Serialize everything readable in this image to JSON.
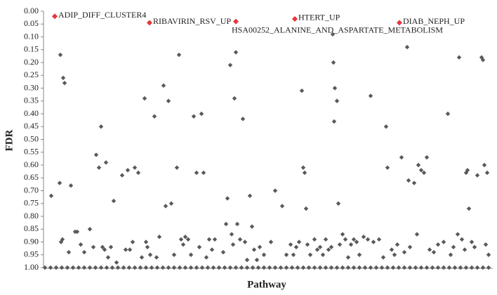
{
  "chart_data": {
    "type": "scatter",
    "x_label": "Pathway",
    "y_label": "FDR",
    "y_inverted": true,
    "xlim": [
      0,
      640
    ],
    "ylim": [
      0,
      1
    ],
    "yticks": [
      {
        "value": 0,
        "label": "0.00"
      },
      {
        "value": 0.05,
        "label": "0.05"
      },
      {
        "value": 0.1,
        "label": "0.10"
      },
      {
        "value": 0.15,
        "label": "0.15"
      },
      {
        "value": 0.2,
        "label": "0.20"
      },
      {
        "value": 0.25,
        "label": "0.25"
      },
      {
        "value": 0.3,
        "label": "0.30"
      },
      {
        "value": 0.35,
        "label": "0.35"
      },
      {
        "value": 0.4,
        "label": "0.40"
      },
      {
        "value": 0.45,
        "label": "0.45"
      },
      {
        "value": 0.5,
        "label": "0.50"
      },
      {
        "value": 0.55,
        "label": "0.55"
      },
      {
        "value": 0.6,
        "label": "0.60"
      },
      {
        "value": 0.65,
        "label": "0.65"
      },
      {
        "value": 0.7,
        "label": "0.70"
      },
      {
        "value": 0.75,
        "label": "0.75"
      },
      {
        "value": 0.8,
        "label": "0.80"
      },
      {
        "value": 0.85,
        "label": "0.85"
      },
      {
        "value": 0.9,
        "label": "0.90"
      },
      {
        "value": 0.95,
        "label": "0.95"
      },
      {
        "value": 1,
        "label": "1.00"
      }
    ],
    "series": [
      {
        "color": "#595959",
        "x": [
          11,
          24,
          28,
          30,
          23,
          39,
          25,
          27,
          36,
          45,
          48,
          53,
          58,
          66,
          71,
          75,
          79,
          82,
          84,
          87,
          89,
          92,
          96,
          100,
          104,
          112,
          117,
          120,
          123,
          127,
          130,
          135,
          140,
          144,
          146,
          148,
          152,
          158,
          161,
          165,
          171,
          174,
          178,
          182,
          186,
          190,
          193,
          196,
          199,
          202,
          206,
          210,
          214,
          218,
          222,
          225,
          228,
          232,
          236,
          240,
          244,
          256,
          260,
          262,
          266,
          268,
          270,
          272,
          274,
          276,
          280,
          284,
          287,
          290,
          294,
          297,
          300,
          304,
          308,
          314,
          324,
          330,
          340,
          346,
          352,
          356,
          360,
          364,
          368,
          370,
          372,
          374,
          376,
          380,
          386,
          390,
          394,
          398,
          402,
          406,
          410,
          412,
          413,
          414,
          415,
          418,
          420,
          422,
          426,
          430,
          434,
          438,
          442,
          446,
          450,
          456,
          462,
          466,
          470,
          478,
          484,
          488,
          490,
          496,
          500,
          504,
          510,
          514,
          518,
          520,
          522,
          528,
          532,
          534,
          538,
          542,
          546,
          550,
          556,
          562,
          570,
          576,
          580,
          584,
          590,
          592,
          596,
          600,
          602,
          604,
          606,
          610,
          614,
          618,
          624,
          626,
          628,
          630,
          632,
          634,
          2,
          10,
          18,
          26,
          34,
          42,
          50,
          58,
          66,
          74,
          82,
          90,
          98,
          106,
          114,
          122,
          130,
          138,
          146,
          154,
          162,
          170,
          178,
          186,
          194,
          202,
          210,
          218,
          226,
          234,
          242,
          250,
          258,
          266,
          274,
          282,
          290,
          298,
          306,
          314,
          322,
          330,
          338,
          346,
          354,
          362,
          370,
          378,
          386,
          394,
          402,
          410,
          418,
          426,
          434,
          442,
          450,
          458,
          466,
          474,
          482,
          490,
          498,
          506,
          514,
          522,
          530,
          538,
          546,
          554,
          562,
          570,
          578,
          586,
          594,
          602,
          610,
          618,
          626,
          634
        ],
        "values": [
          0.72,
          0.17,
          0.26,
          0.28,
          0.67,
          0.68,
          0.9,
          0.89,
          0.94,
          0.86,
          0.86,
          0.91,
          0.94,
          0.85,
          0.92,
          0.56,
          0.61,
          0.45,
          0.92,
          0.93,
          0.59,
          0.96,
          0.92,
          0.74,
          0.98,
          0.64,
          0.93,
          0.62,
          0.93,
          0.9,
          0.61,
          0.63,
          0.96,
          0.34,
          0.9,
          0.92,
          0.95,
          0.41,
          0.96,
          0.88,
          0.29,
          0.76,
          0.35,
          0.75,
          0.95,
          0.61,
          0.17,
          0.89,
          0.91,
          0.88,
          0.89,
          0.95,
          0.41,
          0.63,
          0.92,
          0.4,
          0.63,
          0.96,
          0.89,
          0.93,
          0.89,
          0.94,
          0.83,
          0.73,
          0.21,
          0.87,
          0.91,
          0.34,
          0.16,
          0.83,
          0.89,
          0.42,
          0.9,
          0.97,
          0.72,
          0.84,
          0.93,
          0.97,
          0.92,
          0.95,
          0.9,
          0.7,
          0.76,
          0.95,
          0.91,
          0.95,
          0.92,
          0.9,
          0.31,
          0.61,
          0.63,
          0.77,
          0.91,
          0.95,
          0.89,
          0.93,
          0.92,
          0.95,
          0.89,
          0.93,
          0.92,
          0.09,
          0.2,
          0.43,
          0.3,
          0.35,
          0.75,
          0.91,
          0.87,
          0.89,
          0.96,
          0.91,
          0.89,
          0.9,
          0.95,
          0.88,
          0.89,
          0.33,
          0.9,
          0.89,
          0.96,
          0.45,
          0.61,
          0.93,
          0.95,
          0.91,
          0.57,
          0.94,
          0.14,
          0.66,
          0.92,
          0.67,
          0.87,
          0.6,
          0.62,
          0.63,
          0.57,
          0.93,
          0.94,
          0.91,
          0.9,
          0.4,
          0.95,
          0.92,
          0.87,
          0.18,
          0.89,
          0.93,
          0.63,
          0.62,
          0.77,
          0.9,
          0.92,
          0.64,
          0.18,
          0.19,
          0.6,
          0.91,
          0.63,
          0.95,
          1,
          1,
          1,
          1,
          1,
          1,
          1,
          1,
          1,
          1,
          1,
          1,
          1,
          1,
          1,
          1,
          1,
          1,
          1,
          1,
          1,
          1,
          1,
          1,
          1,
          1,
          1,
          1,
          1,
          1,
          1,
          1,
          1,
          1,
          1,
          1,
          1,
          1,
          1,
          1,
          1,
          1,
          1,
          1,
          1,
          1,
          1,
          1,
          1,
          1,
          1,
          1,
          1,
          1,
          1,
          1,
          1,
          1,
          1,
          1,
          1,
          1,
          1,
          1,
          1,
          1,
          1,
          1,
          1,
          1,
          1,
          1,
          1,
          1,
          1,
          1,
          1,
          1,
          1,
          1
        ]
      },
      {
        "color": "#e8363b",
        "x": [
          16,
          151,
          274,
          358,
          507
        ],
        "values": [
          0.02,
          0.045,
          0.04,
          0.03,
          0.045
        ],
        "labels": [
          "ADIP_DIFF_CLUSTER4",
          "RIBAVIRIN_RSV_UP",
          "HSA00252_ALANINE_AND_ASPARTATE_METABOLISM",
          "HTERT_UP",
          "DIAB_NEPH_UP"
        ]
      }
    ]
  }
}
